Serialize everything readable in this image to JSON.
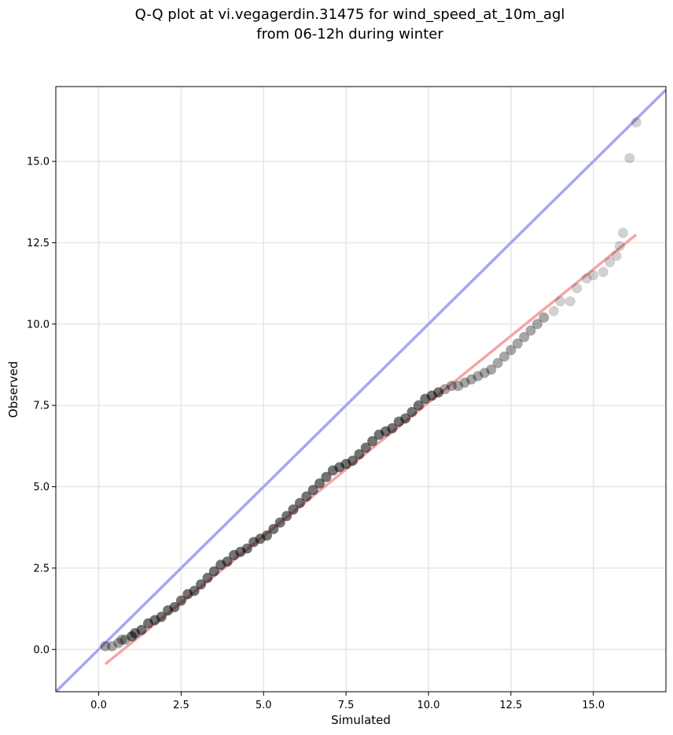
{
  "chart_data": {
    "type": "scatter",
    "title_line1": "Q-Q plot at vi.vegagerdin.31475 for wind_speed_at_10m_agl",
    "title_line2": "from 06-12h during winter",
    "xlabel": "Simulated",
    "ylabel": "Observed",
    "xlim": [
      -1.3,
      17.2
    ],
    "ylim": [
      -1.3,
      17.3
    ],
    "xticks": [
      0.0,
      2.5,
      5.0,
      7.5,
      10.0,
      12.5,
      15.0
    ],
    "xtick_labels": [
      "0.0",
      "2.5",
      "5.0",
      "7.5",
      "10.0",
      "12.5",
      "15.0"
    ],
    "yticks": [
      0.0,
      2.5,
      5.0,
      7.5,
      10.0,
      12.5,
      15.0
    ],
    "ytick_labels": [
      "0.0",
      "2.5",
      "5.0",
      "7.5",
      "10.0",
      "12.5",
      "15.0"
    ],
    "grid": true,
    "identity_line": {
      "color": "#a6a6f2",
      "from": [
        -1.3,
        -1.3
      ],
      "to": [
        17.2,
        17.2
      ]
    },
    "fit_line": {
      "color": "#f2a6a6",
      "from": [
        0.2,
        -0.45
      ],
      "to": [
        16.3,
        12.75
      ]
    },
    "points": {
      "color": "#000000",
      "x": [
        0.2,
        0.4,
        0.6,
        0.7,
        0.8,
        1.0,
        1.1,
        1.3,
        1.5,
        1.7,
        1.9,
        2.1,
        2.3,
        2.5,
        2.7,
        2.9,
        3.1,
        3.3,
        3.5,
        3.7,
        3.9,
        4.1,
        4.3,
        4.5,
        4.7,
        4.9,
        5.1,
        5.3,
        5.5,
        5.7,
        5.9,
        6.1,
        6.3,
        6.5,
        6.7,
        6.9,
        7.1,
        7.3,
        7.5,
        7.7,
        7.9,
        8.1,
        8.3,
        8.5,
        8.7,
        8.9,
        9.1,
        9.3,
        9.5,
        9.7,
        9.9,
        10.1,
        10.3,
        10.5,
        10.7,
        10.9,
        11.1,
        11.3,
        11.5,
        11.7,
        11.9,
        12.1,
        12.3,
        12.5,
        12.7,
        12.9,
        13.1,
        13.3,
        13.5,
        13.8,
        14.0,
        14.3,
        14.5,
        14.8,
        15.0,
        15.3,
        15.5,
        15.7,
        15.8,
        15.9,
        16.1,
        16.3
      ],
      "y": [
        0.1,
        0.1,
        0.2,
        0.3,
        0.3,
        0.4,
        0.5,
        0.6,
        0.8,
        0.9,
        1.0,
        1.2,
        1.3,
        1.5,
        1.7,
        1.8,
        2.0,
        2.2,
        2.4,
        2.6,
        2.7,
        2.9,
        3.0,
        3.1,
        3.3,
        3.4,
        3.5,
        3.7,
        3.9,
        4.1,
        4.3,
        4.5,
        4.7,
        4.9,
        5.1,
        5.3,
        5.5,
        5.6,
        5.7,
        5.8,
        6.0,
        6.2,
        6.4,
        6.6,
        6.7,
        6.8,
        7.0,
        7.1,
        7.3,
        7.5,
        7.7,
        7.8,
        7.9,
        8.0,
        8.1,
        8.1,
        8.2,
        8.3,
        8.4,
        8.5,
        8.6,
        8.8,
        9.0,
        9.2,
        9.4,
        9.6,
        9.8,
        10.0,
        10.2,
        10.4,
        10.7,
        10.7,
        11.1,
        11.4,
        11.5,
        11.6,
        11.9,
        12.1,
        12.4,
        12.8,
        15.1,
        16.2
      ]
    }
  }
}
